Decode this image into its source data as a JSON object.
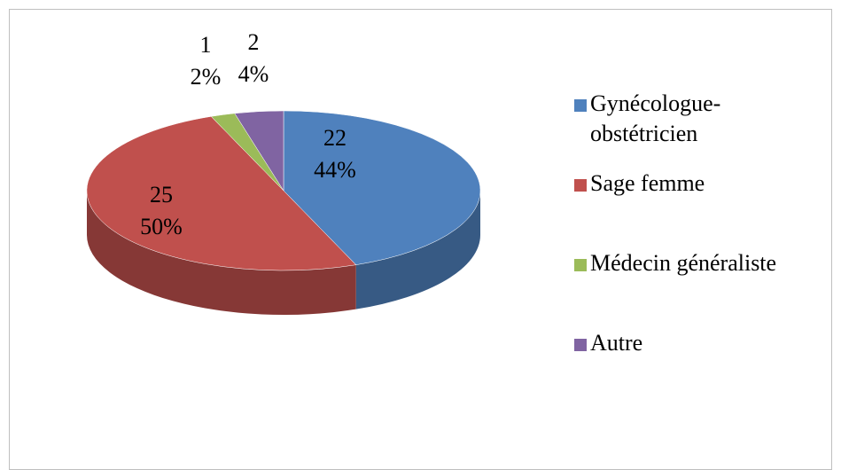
{
  "chart_data": {
    "type": "pie",
    "categories": [
      "Gynécologue-obstétricien",
      "Sage femme",
      "Médecin généraliste",
      "Autre"
    ],
    "values": [
      22,
      25,
      1,
      2
    ],
    "percent_labels": [
      "44%",
      "50%",
      "2%",
      "4%"
    ],
    "colors": [
      "#4f81bd",
      "#c0504d",
      "#9bbb59",
      "#8064a2"
    ],
    "legend": "right"
  }
}
